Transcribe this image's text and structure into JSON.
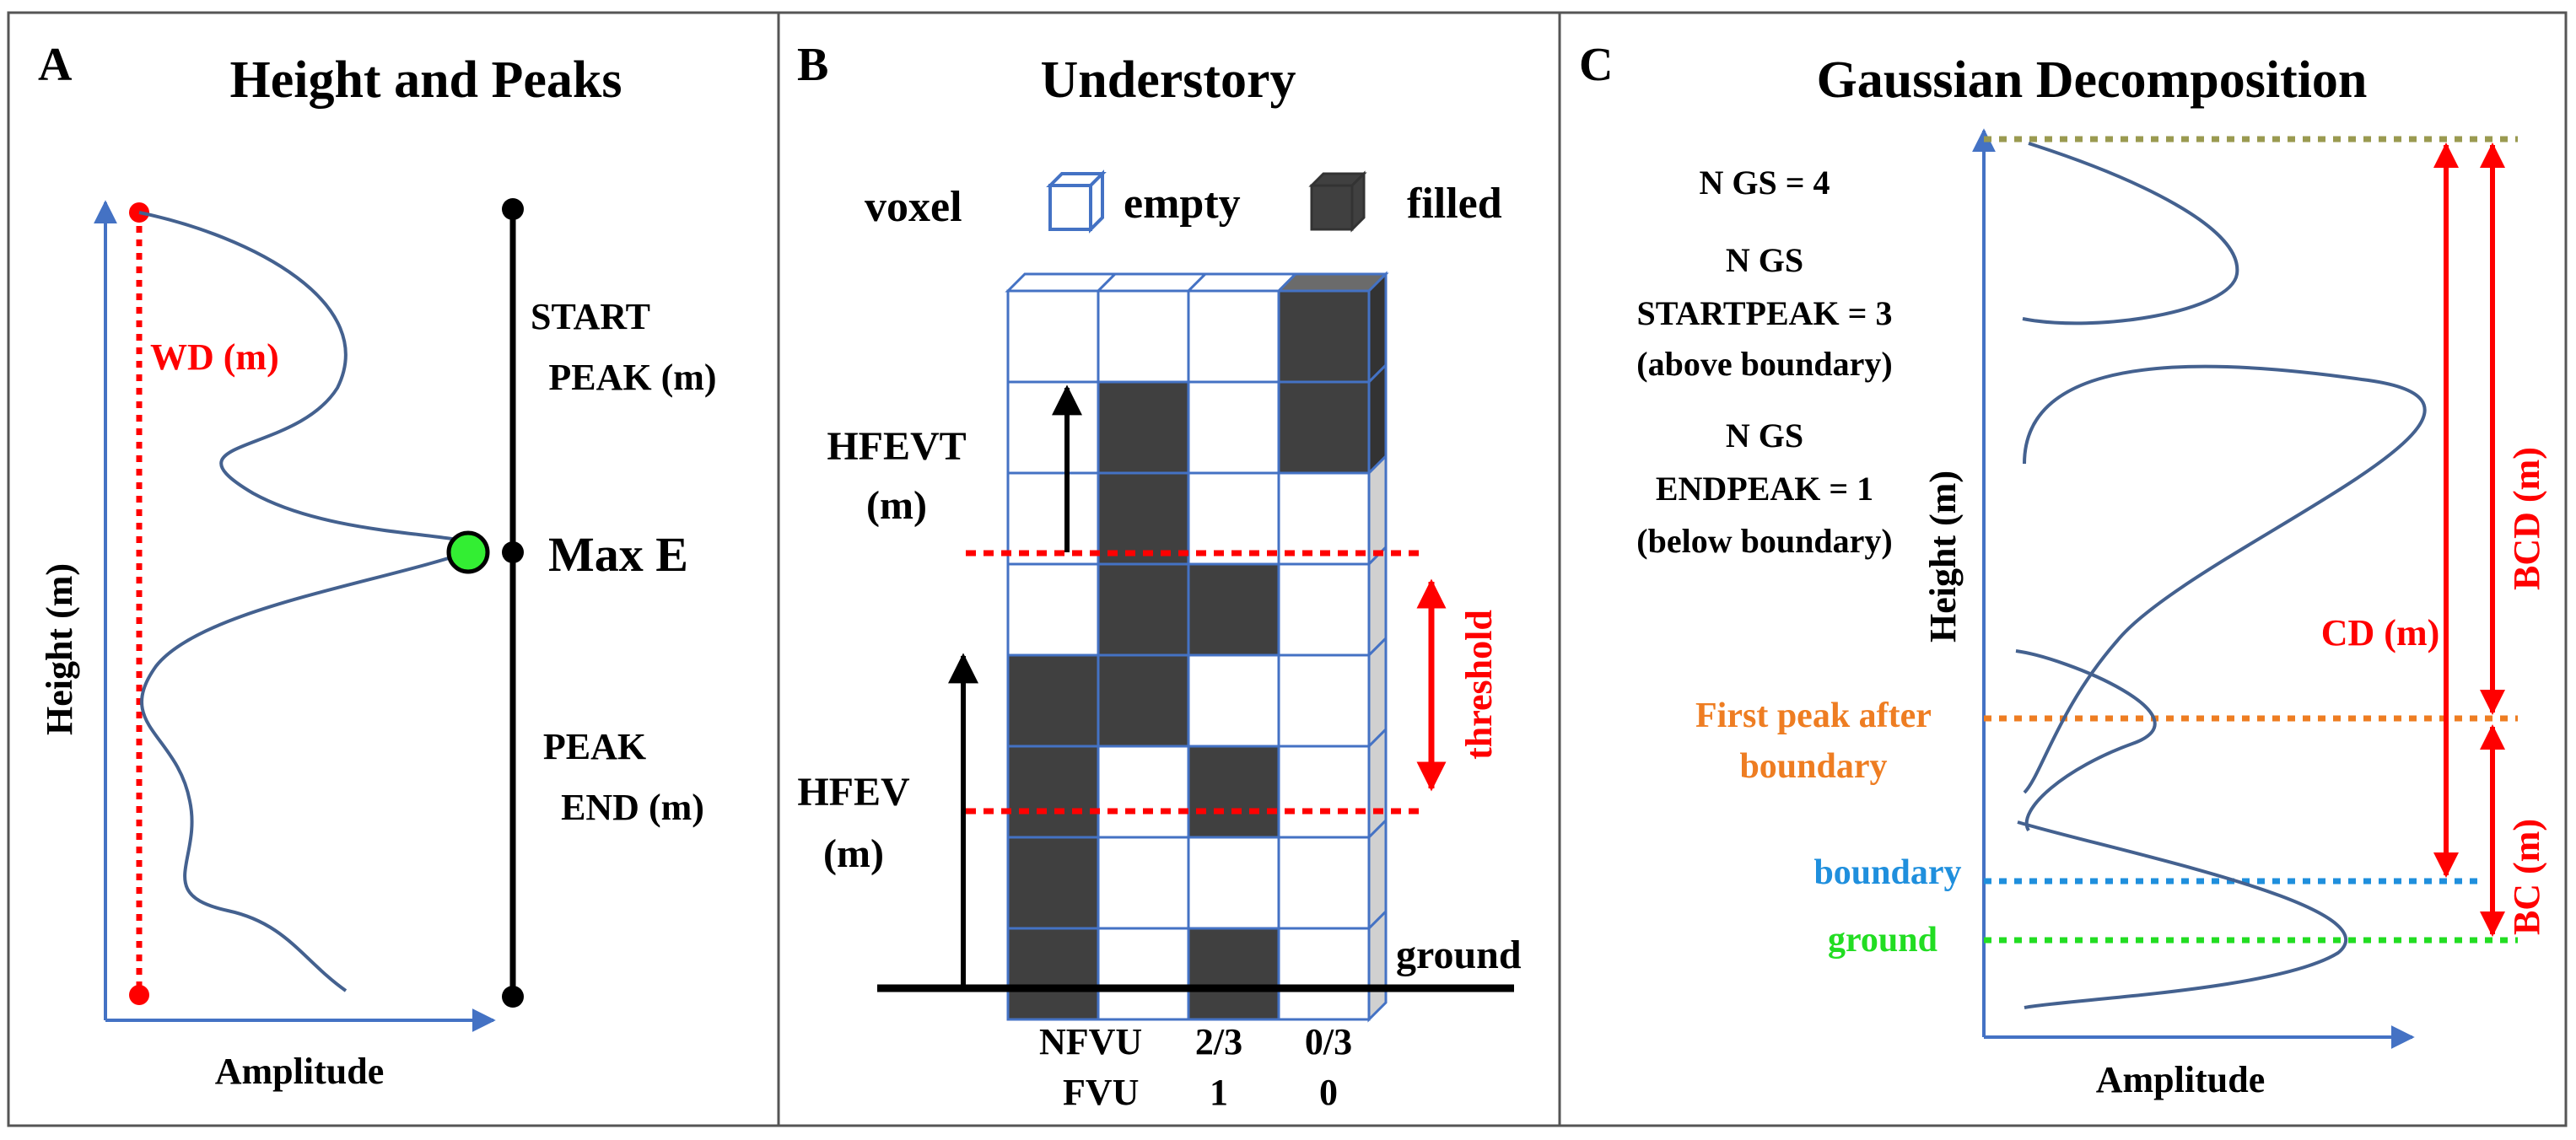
{
  "panels": {
    "a": {
      "letter": "A",
      "title": "Height and Peaks",
      "y_axis_label": "Height (m)",
      "x_axis_label": "Amplitude",
      "wd_label": "WD (m)",
      "start_peak_line1": "START",
      "start_peak_line2": "PEAK (m)",
      "max_e_label": "Max E",
      "peak_end_line1": "PEAK",
      "peak_end_line2": "END (m)"
    },
    "b": {
      "letter": "B",
      "title": "Understory",
      "voxel_label": "voxel",
      "empty_label": "empty",
      "filled_label": "filled",
      "hfevt_line1": "HFEVT",
      "hfevt_line2": "(m)",
      "hfev_line1": "HFEV",
      "hfev_line2": "(m)",
      "threshold_label": "threshold",
      "ground_label": "ground",
      "nfvu_label": "NFVU",
      "nfvu_col3": "2/3",
      "nfvu_col4": "0/3",
      "fvu_label": "FVU",
      "fvu_col3": "1",
      "fvu_col4": "0",
      "grid_rows": [
        [
          0,
          0,
          0,
          1
        ],
        [
          0,
          1,
          0,
          1
        ],
        [
          0,
          1,
          0,
          0
        ],
        [
          0,
          1,
          1,
          0
        ],
        [
          1,
          1,
          0,
          0
        ],
        [
          1,
          0,
          1,
          0
        ],
        [
          1,
          0,
          0,
          0
        ],
        [
          1,
          0,
          1,
          0
        ]
      ]
    },
    "c": {
      "letter": "C",
      "title": "Gaussian Decomposition",
      "ngs_label": "N GS = 4",
      "ngs_start_line1": "N GS",
      "ngs_start_line2": "STARTPEAK = 3",
      "ngs_start_line3": "(above boundary)",
      "ngs_end_line1": "N GS",
      "ngs_end_line2": "ENDPEAK = 1",
      "ngs_end_line3": "(below boundary)",
      "y_axis_label": "Height (m)",
      "x_axis_label": "Amplitude",
      "first_peak_line1": "First peak after",
      "first_peak_line2": "boundary",
      "boundary_label": "boundary",
      "ground_label": "ground",
      "cd_label": "CD (m)",
      "bcd_label": "BCD (m)",
      "bc_label": "BC (m)"
    }
  },
  "colors": {
    "red": "#ff0000",
    "axis_blue": "#4472c4",
    "curve": "#44618f",
    "dark_fill": "#404040",
    "green_marker": "#33ee33",
    "orange": "#ee7d22",
    "boundary_blue": "#1f8fdd",
    "ground_green": "#22dd22",
    "olive": "#9a9a50"
  }
}
